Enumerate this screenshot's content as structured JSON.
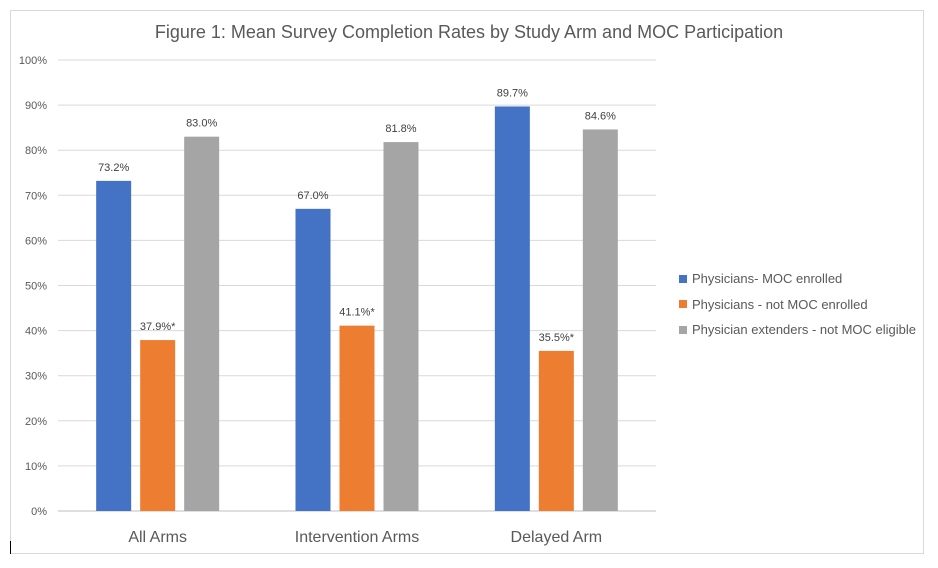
{
  "chart_data": {
    "type": "bar",
    "title": "Figure 1: Mean Survey Completion Rates by Study Arm and MOC Participation",
    "categories": [
      "All Arms",
      "Intervention Arms",
      "Delayed Arm"
    ],
    "ylim": [
      0,
      100
    ],
    "y_ticks": [
      "0%",
      "10%",
      "20%",
      "30%",
      "40%",
      "50%",
      "60%",
      "70%",
      "80%",
      "90%",
      "100%"
    ],
    "grid": true,
    "legend_position": "right",
    "series": [
      {
        "name": "Physicians- MOC enrolled",
        "color": "#4472c4",
        "values": [
          73.2,
          67.0,
          89.7
        ],
        "labels": [
          "73.2%",
          "67.0%",
          "89.7%"
        ]
      },
      {
        "name": "Physicians - not MOC enrolled",
        "color": "#ed7d31",
        "values": [
          37.9,
          41.1,
          35.5
        ],
        "labels": [
          "37.9%*",
          "41.1%*",
          "35.5%*"
        ]
      },
      {
        "name": "Physician extenders -  not MOC eligible",
        "color": "#a5a5a5",
        "values": [
          83.0,
          81.8,
          84.6
        ],
        "labels": [
          "83.0%",
          "81.8%",
          "84.6%"
        ]
      }
    ]
  }
}
